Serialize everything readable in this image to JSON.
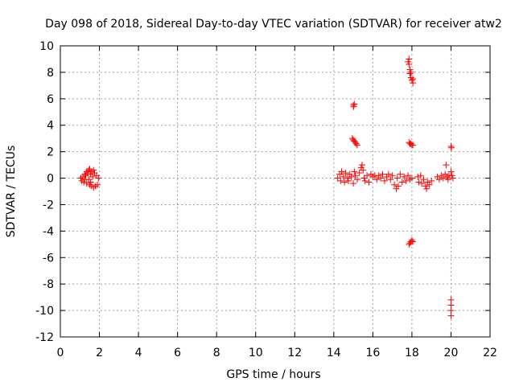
{
  "chart_data": {
    "type": "scatter",
    "title": "Day 098 of 2018, Sidereal Day-to-day VTEC variation (SDTVAR) for receiver atw2",
    "xlabel": "GPS time / hours",
    "ylabel": "SDTVAR / TECUs",
    "xlim": [
      0,
      22
    ],
    "ylim": [
      -12,
      10
    ],
    "xticks": [
      0,
      2,
      4,
      6,
      8,
      10,
      12,
      14,
      16,
      18,
      20,
      22
    ],
    "yticks": [
      -12,
      -10,
      -8,
      -6,
      -4,
      -2,
      0,
      2,
      4,
      6,
      8,
      10
    ],
    "grid": true,
    "marker": "plus",
    "color": "#ff0000",
    "series": [
      {
        "name": "SDTVAR",
        "points": [
          [
            1.05,
            0.0
          ],
          [
            1.1,
            -0.2
          ],
          [
            1.15,
            0.1
          ],
          [
            1.2,
            -0.3
          ],
          [
            1.25,
            -0.1
          ],
          [
            1.3,
            0.2
          ],
          [
            1.35,
            -0.4
          ],
          [
            1.4,
            0.4
          ],
          [
            1.45,
            0.6
          ],
          [
            1.5,
            0.7
          ],
          [
            1.5,
            -0.5
          ],
          [
            1.55,
            0.3
          ],
          [
            1.6,
            0.5
          ],
          [
            1.6,
            -0.6
          ],
          [
            1.65,
            0.1
          ],
          [
            1.7,
            -0.7
          ],
          [
            1.75,
            0.4
          ],
          [
            1.8,
            -0.6
          ],
          [
            1.85,
            0.2
          ],
          [
            1.9,
            -0.5
          ],
          [
            1.95,
            0.0
          ],
          [
            1.45,
            -0.1
          ],
          [
            1.55,
            -0.3
          ],
          [
            1.7,
            0.6
          ],
          [
            1.35,
            0.5
          ],
          [
            1.25,
            0.3
          ],
          [
            14.2,
            0.0
          ],
          [
            14.3,
            0.3
          ],
          [
            14.35,
            -0.2
          ],
          [
            14.4,
            0.5
          ],
          [
            14.5,
            0.1
          ],
          [
            14.55,
            -0.3
          ],
          [
            14.6,
            0.4
          ],
          [
            14.7,
            0.0
          ],
          [
            14.75,
            -0.2
          ],
          [
            14.8,
            0.3
          ],
          [
            14.9,
            0.1
          ],
          [
            15.0,
            -0.4
          ],
          [
            15.05,
            0.5
          ],
          [
            15.1,
            0.2
          ],
          [
            15.2,
            -0.1
          ],
          [
            15.3,
            0.4
          ],
          [
            15.4,
            0.8
          ],
          [
            15.45,
            1.0
          ],
          [
            15.5,
            0.6
          ],
          [
            15.55,
            0.0
          ],
          [
            15.6,
            -0.2
          ],
          [
            15.7,
            0.2
          ],
          [
            15.8,
            -0.3
          ],
          [
            15.9,
            0.3
          ],
          [
            16.0,
            0.1
          ],
          [
            16.1,
            0.2
          ],
          [
            16.2,
            -0.1
          ],
          [
            16.3,
            0.2
          ],
          [
            16.4,
            0.0
          ],
          [
            16.5,
            0.3
          ],
          [
            16.6,
            -0.2
          ],
          [
            16.7,
            0.1
          ],
          [
            16.8,
            0.3
          ],
          [
            16.9,
            -0.1
          ],
          [
            17.0,
            0.2
          ],
          [
            17.1,
            -0.5
          ],
          [
            17.2,
            -0.8
          ],
          [
            17.25,
            0.0
          ],
          [
            17.3,
            -0.6
          ],
          [
            17.4,
            0.3
          ],
          [
            17.5,
            -0.3
          ],
          [
            17.6,
            0.1
          ],
          [
            17.7,
            -0.2
          ],
          [
            17.8,
            0.2
          ],
          [
            17.9,
            -0.1
          ],
          [
            18.0,
            0.0
          ],
          [
            15.0,
            5.5
          ],
          [
            15.05,
            5.6
          ],
          [
            15.02,
            5.4
          ],
          [
            14.95,
            3.0
          ],
          [
            15.0,
            2.9
          ],
          [
            15.05,
            2.8
          ],
          [
            15.1,
            2.7
          ],
          [
            15.15,
            2.6
          ],
          [
            15.2,
            2.5
          ],
          [
            17.85,
            9.0
          ],
          [
            17.85,
            8.6
          ],
          [
            17.9,
            8.2
          ],
          [
            17.9,
            7.9
          ],
          [
            17.95,
            7.6
          ],
          [
            18.0,
            7.4
          ],
          [
            18.05,
            7.2
          ],
          [
            17.8,
            8.8
          ],
          [
            17.95,
            8.0
          ],
          [
            18.05,
            7.5
          ],
          [
            17.85,
            2.7
          ],
          [
            17.9,
            2.6
          ],
          [
            17.95,
            2.6
          ],
          [
            18.0,
            2.5
          ],
          [
            18.05,
            2.5
          ],
          [
            17.85,
            -5.0
          ],
          [
            17.9,
            -4.9
          ],
          [
            17.95,
            -4.8
          ],
          [
            18.0,
            -4.7
          ],
          [
            18.05,
            -4.8
          ],
          [
            18.3,
            0.1
          ],
          [
            18.35,
            -0.3
          ],
          [
            18.45,
            0.2
          ],
          [
            18.5,
            -0.4
          ],
          [
            18.6,
            -0.1
          ],
          [
            18.7,
            -0.6
          ],
          [
            18.75,
            -0.8
          ],
          [
            18.8,
            -0.3
          ],
          [
            18.9,
            -0.5
          ],
          [
            19.0,
            -0.2
          ],
          [
            19.3,
            0.1
          ],
          [
            19.4,
            -0.1
          ],
          [
            19.5,
            0.2
          ],
          [
            19.6,
            0.0
          ],
          [
            19.7,
            0.3
          ],
          [
            19.75,
            1.0
          ],
          [
            19.8,
            0.1
          ],
          [
            19.85,
            -0.1
          ],
          [
            19.9,
            0.2
          ],
          [
            20.0,
            0.5
          ],
          [
            20.05,
            0.2
          ],
          [
            20.1,
            0.0
          ],
          [
            20.0,
            2.4
          ],
          [
            20.02,
            2.3
          ],
          [
            20.0,
            -9.2
          ],
          [
            20.0,
            -9.6
          ],
          [
            20.0,
            -10.0
          ],
          [
            20.0,
            -10.4
          ]
        ]
      }
    ]
  }
}
